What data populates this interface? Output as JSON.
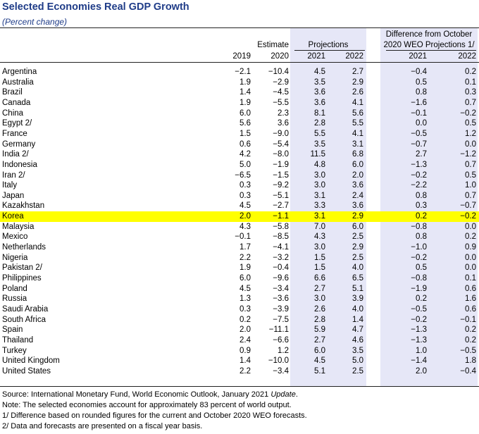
{
  "title": "Selected Economies Real GDP Growth",
  "subtitle": "(Percent change)",
  "headers": {
    "estimate": "Estimate",
    "projections": "Projections",
    "difference_line1": "Difference from October",
    "difference_line2": "2020 WEO Projections 1/",
    "y2019": "2019",
    "y2020": "2020",
    "y2021": "2021",
    "y2022": "2022",
    "d2021": "2021",
    "d2022": "2022"
  },
  "highlighted_row": "Korea",
  "highlight_color": "#ffff00",
  "band_color": "#e6e7f7",
  "title_color": "#1f3c88",
  "rows": [
    [
      "Argentina",
      "−2.1",
      "−10.4",
      "4.5",
      "2.7",
      "−0.4",
      "0.2"
    ],
    [
      "Australia",
      "1.9",
      "−2.9",
      "3.5",
      "2.9",
      "0.5",
      "0.1"
    ],
    [
      "Brazil",
      "1.4",
      "−4.5",
      "3.6",
      "2.6",
      "0.8",
      "0.3"
    ],
    [
      "Canada",
      "1.9",
      "−5.5",
      "3.6",
      "4.1",
      "−1.6",
      "0.7"
    ],
    [
      "China",
      "6.0",
      "2.3",
      "8.1",
      "5.6",
      "−0.1",
      "−0.2"
    ],
    [
      "Egypt 2/",
      "5.6",
      "3.6",
      "2.8",
      "5.5",
      "0.0",
      "0.5"
    ],
    [
      "France",
      "1.5",
      "−9.0",
      "5.5",
      "4.1",
      "−0.5",
      "1.2"
    ],
    [
      "Germany",
      "0.6",
      "−5.4",
      "3.5",
      "3.1",
      "−0.7",
      "0.0"
    ],
    [
      "India 2/",
      "4.2",
      "−8.0",
      "11.5",
      "6.8",
      "2.7",
      "−1.2"
    ],
    [
      "Indonesia",
      "5.0",
      "−1.9",
      "4.8",
      "6.0",
      "−1.3",
      "0.7"
    ],
    [
      "Iran 2/",
      "−6.5",
      "−1.5",
      "3.0",
      "2.0",
      "−0.2",
      "0.5"
    ],
    [
      "Italy",
      "0.3",
      "−9.2",
      "3.0",
      "3.6",
      "−2.2",
      "1.0"
    ],
    [
      "Japan",
      "0.3",
      "−5.1",
      "3.1",
      "2.4",
      "0.8",
      "0.7"
    ],
    [
      "Kazakhstan",
      "4.5",
      "−2.7",
      "3.3",
      "3.6",
      "0.3",
      "−0.7"
    ],
    [
      "Korea",
      "2.0",
      "−1.1",
      "3.1",
      "2.9",
      "0.2",
      "−0.2"
    ],
    [
      "Malaysia",
      "4.3",
      "−5.8",
      "7.0",
      "6.0",
      "−0.8",
      "0.0"
    ],
    [
      "Mexico",
      "−0.1",
      "−8.5",
      "4.3",
      "2.5",
      "0.8",
      "0.2"
    ],
    [
      "Netherlands",
      "1.7",
      "−4.1",
      "3.0",
      "2.9",
      "−1.0",
      "0.9"
    ],
    [
      "Nigeria",
      "2.2",
      "−3.2",
      "1.5",
      "2.5",
      "−0.2",
      "0.0"
    ],
    [
      "Pakistan 2/",
      "1.9",
      "−0.4",
      "1.5",
      "4.0",
      "0.5",
      "0.0"
    ],
    [
      "Philippines",
      "6.0",
      "−9.6",
      "6.6",
      "6.5",
      "−0.8",
      "0.1"
    ],
    [
      "Poland",
      "4.5",
      "−3.4",
      "2.7",
      "5.1",
      "−1.9",
      "0.6"
    ],
    [
      "Russia",
      "1.3",
      "−3.6",
      "3.0",
      "3.9",
      "0.2",
      "1.6"
    ],
    [
      "Saudi Arabia",
      "0.3",
      "−3.9",
      "2.6",
      "4.0",
      "−0.5",
      "0.6"
    ],
    [
      "South Africa",
      "0.2",
      "−7.5",
      "2.8",
      "1.4",
      "−0.2",
      "−0.1"
    ],
    [
      "Spain",
      "2.0",
      "−11.1",
      "5.9",
      "4.7",
      "−1.3",
      "0.2"
    ],
    [
      "Thailand",
      "2.4",
      "−6.6",
      "2.7",
      "4.6",
      "−1.3",
      "0.2"
    ],
    [
      "Turkey",
      "0.9",
      "1.2",
      "6.0",
      "3.5",
      "1.0",
      "−0.5"
    ],
    [
      "United Kingdom",
      "1.4",
      "−10.0",
      "4.5",
      "5.0",
      "−1.4",
      "1.8"
    ],
    [
      "United States",
      "2.2",
      "−3.4",
      "5.1",
      "2.5",
      "2.0",
      "−0.4"
    ]
  ],
  "notes": {
    "source_prefix": "Source: International Monetary Fund, World Economic Outlook, January 2021 ",
    "source_italic": "Update",
    "source_suffix": ".",
    "note": "Note: The selected economies account for approximately 83 percent of world output.",
    "footnote1": "1/ Difference based on rounded figures for the current and October 2020 WEO forecasts.",
    "footnote2": "2/ Data and forecasts are presented on a fiscal year basis."
  }
}
